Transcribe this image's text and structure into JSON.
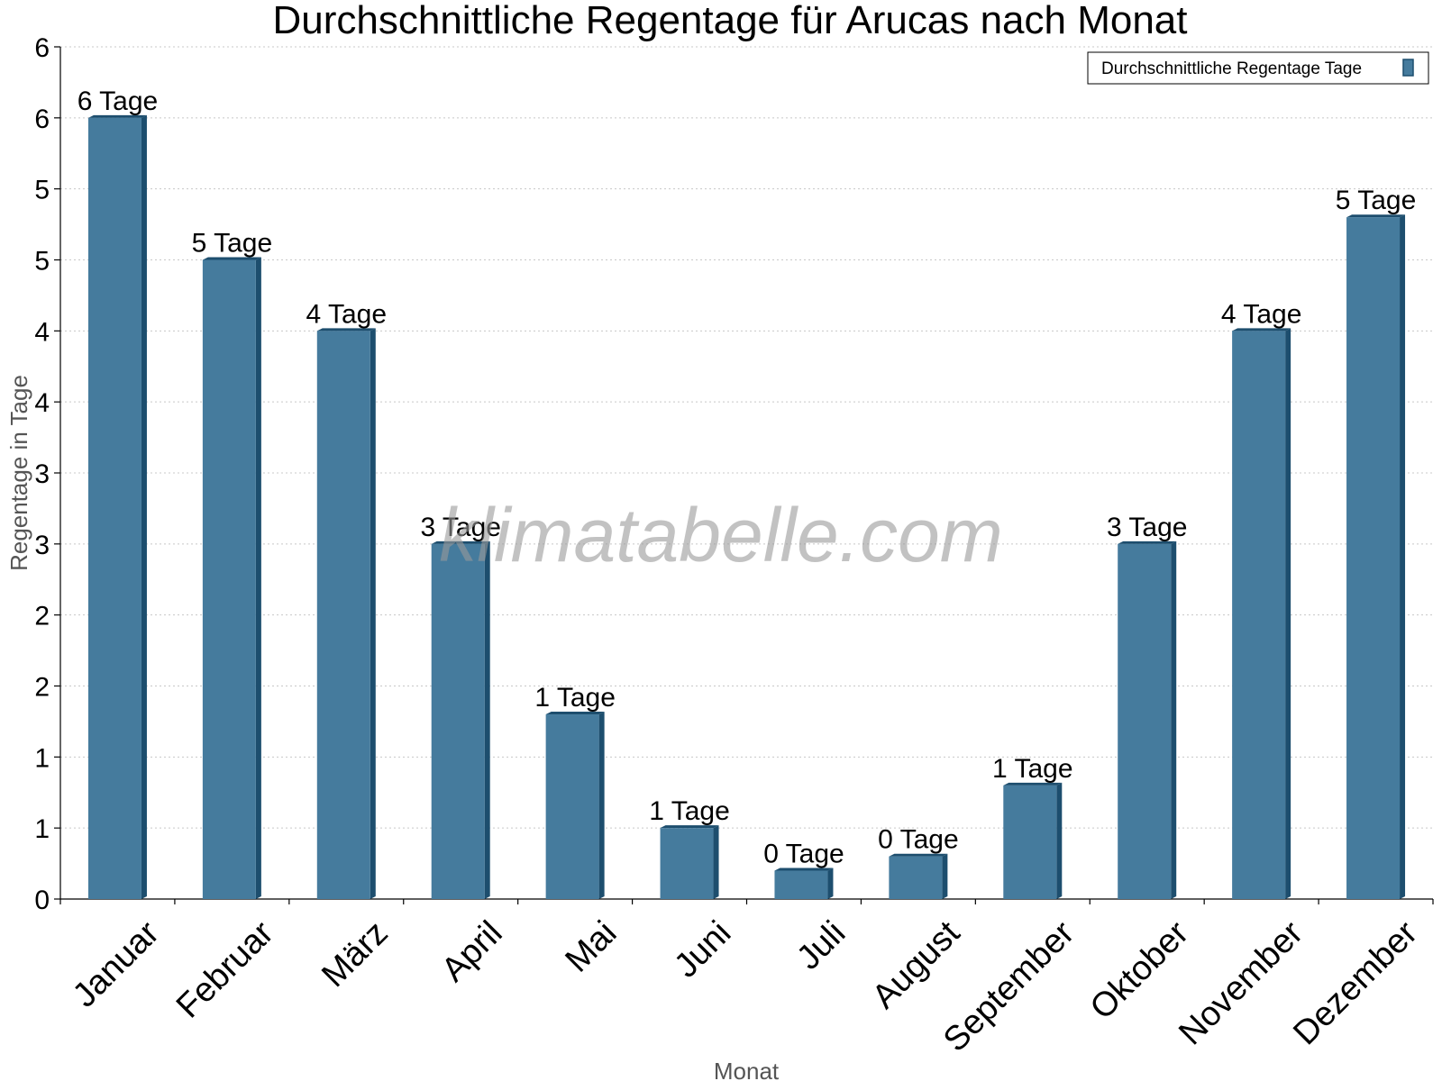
{
  "chart_data": {
    "type": "bar",
    "title": "Durchschnittliche Regentage für Arucas nach Monat",
    "xlabel": "Monat",
    "ylabel": "Regentage in Tage",
    "categories": [
      "Januar",
      "Februar",
      "März",
      "April",
      "Mai",
      "Juni",
      "Juli",
      "August",
      "September",
      "Oktober",
      "November",
      "Dezember"
    ],
    "series": [
      {
        "name": "Durchschnittliche Regentage Tage",
        "values": [
          5.5,
          4.5,
          4.0,
          2.5,
          1.3,
          0.5,
          0.2,
          0.3,
          0.8,
          2.5,
          4.0,
          4.8
        ]
      }
    ],
    "data_labels": [
      "6 Tage",
      "5 Tage",
      "4 Tage",
      "3 Tage",
      "1 Tage",
      "1 Tage",
      "0 Tage",
      "0 Tage",
      "1 Tage",
      "3 Tage",
      "4 Tage",
      "5 Tage"
    ],
    "yticks": [
      0,
      0.5,
      1,
      1.5,
      2,
      2.5,
      3,
      3.5,
      4,
      4.5,
      5,
      5.5,
      6
    ],
    "ytick_labels": [
      "0",
      "1",
      "1",
      "2",
      "2",
      "3",
      "3",
      "4",
      "4",
      "5",
      "5",
      "6",
      "6"
    ],
    "ylim": [
      0,
      6
    ],
    "grid": "horizontal dotted",
    "legend_position": "top-right",
    "bar_color": "#457b9d",
    "bar_side_color": "#1d4e6e"
  },
  "watermark": "klimatabelle.com"
}
